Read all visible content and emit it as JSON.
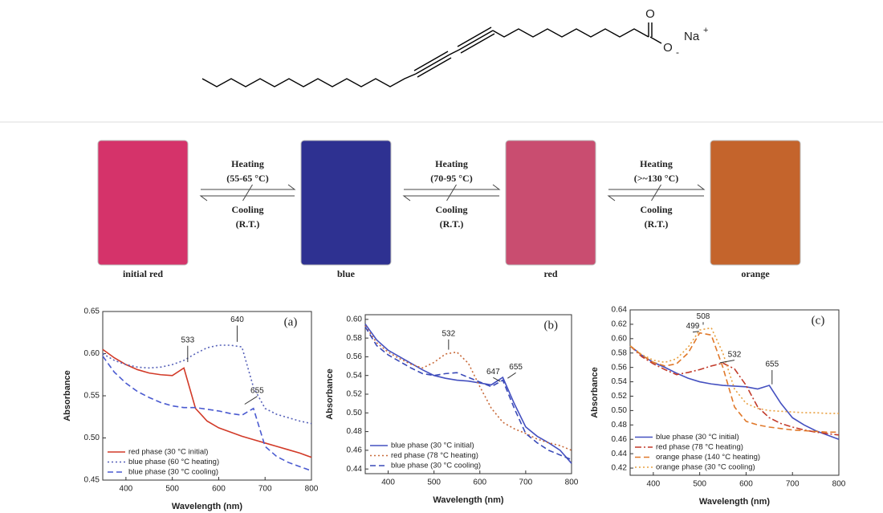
{
  "structure": {
    "carbonyl_o": "O",
    "ester_o": "O",
    "charge": "-",
    "cation": "Na",
    "cation_charge": "+"
  },
  "photos": [
    {
      "label": "initial red",
      "color": "#d5336a"
    },
    {
      "label": "blue",
      "color": "#2e3191"
    },
    {
      "label": "red",
      "color": "#c94d70"
    },
    {
      "label": "orange",
      "color": "#c4642c"
    }
  ],
  "transitions": [
    {
      "heating": "Heating",
      "heat_temp": "(55-65 °C)",
      "cooling": "Cooling",
      "cool_temp": "(R.T.)"
    },
    {
      "heating": "Heating",
      "heat_temp": "(70-95 °C)",
      "cooling": "Cooling",
      "cool_temp": "(R.T.)"
    },
    {
      "heating": "Heating",
      "heat_temp": "(>~130 °C)",
      "cooling": "Cooling",
      "cool_temp": "(R.T.)"
    }
  ],
  "chart_data": [
    {
      "type": "line",
      "panel_label": "(a)",
      "x_label": "Wavelength (nm)",
      "y_label": "Absorbance",
      "legend": "lower left",
      "x": [
        350,
        375,
        400,
        425,
        450,
        475,
        500,
        525,
        550,
        575,
        600,
        625,
        650,
        675,
        700,
        725,
        750,
        775,
        800
      ],
      "xlim": [
        350,
        800
      ],
      "xticks": [
        400,
        500,
        600,
        700,
        800
      ],
      "ylim": [
        0.45,
        0.65
      ],
      "yticks": [
        0.45,
        {
          "value": 0.5,
          "label": "0.50"
        },
        0.55,
        {
          "value": 0.6,
          "label": "0.60"
        },
        0.65
      ],
      "annotations": [
        "533",
        "640",
        "655"
      ],
      "series": [
        {
          "name": "red phase (30 °C initial)",
          "color": "#d23a28",
          "style": "solid",
          "values": [
            0.605,
            0.595,
            0.587,
            0.581,
            0.577,
            0.575,
            0.574,
            0.583,
            0.535,
            0.52,
            0.512,
            0.507,
            0.502,
            0.498,
            0.494,
            0.49,
            0.486,
            0.482,
            0.477
          ]
        },
        {
          "name": "blue phase (60 °C heating)",
          "color": "#5560b8",
          "style": "dotted",
          "values": [
            0.6,
            0.592,
            0.587,
            0.584,
            0.583,
            0.584,
            0.587,
            0.592,
            0.6,
            0.607,
            0.61,
            0.61,
            0.608,
            0.56,
            0.535,
            0.528,
            0.524,
            0.52,
            0.517
          ]
        },
        {
          "name": "blue phase (30 °C cooling)",
          "color": "#4a5ad0",
          "style": "dashed",
          "values": [
            0.597,
            0.578,
            0.565,
            0.555,
            0.548,
            0.542,
            0.538,
            0.536,
            0.536,
            0.534,
            0.532,
            0.529,
            0.527,
            0.535,
            0.49,
            0.478,
            0.471,
            0.466,
            0.461
          ]
        }
      ]
    },
    {
      "type": "line",
      "panel_label": "(b)",
      "x_label": "Wavelength (nm)",
      "y_label": "Absorbance",
      "legend": "lower left",
      "x": [
        350,
        375,
        400,
        425,
        450,
        475,
        500,
        525,
        550,
        575,
        600,
        625,
        650,
        675,
        700,
        725,
        750,
        775,
        800
      ],
      "xlim": [
        350,
        800
      ],
      "xticks": [
        400,
        500,
        600,
        700,
        800
      ],
      "ylim": [
        0.435,
        0.605
      ],
      "yticks": [
        0.44,
        0.46,
        0.48,
        {
          "value": 0.5,
          "label": "0.50"
        },
        0.52,
        0.54,
        0.56,
        0.58,
        {
          "value": 0.6,
          "label": "0.60"
        }
      ],
      "annotations": [
        "532",
        "647",
        "655"
      ],
      "series": [
        {
          "name": "blue phase (30 °C initial)",
          "color": "#4450c0",
          "style": "solid",
          "values": [
            0.595,
            0.578,
            0.567,
            0.56,
            0.553,
            0.546,
            0.54,
            0.537,
            0.535,
            0.534,
            0.532,
            0.53,
            0.538,
            0.51,
            0.485,
            0.475,
            0.468,
            0.46,
            0.446
          ]
        },
        {
          "name": "red phase (78 °C heating)",
          "color": "#c86a3a",
          "style": "dotted",
          "values": [
            0.593,
            0.575,
            0.565,
            0.558,
            0.552,
            0.548,
            0.554,
            0.563,
            0.565,
            0.553,
            0.528,
            0.505,
            0.49,
            0.483,
            0.478,
            0.472,
            0.468,
            0.465,
            0.46
          ]
        },
        {
          "name": "blue phase (30 °C cooling)",
          "color": "#3a4ab8",
          "style": "dashed",
          "values": [
            0.592,
            0.572,
            0.562,
            0.555,
            0.548,
            0.542,
            0.54,
            0.542,
            0.543,
            0.538,
            0.533,
            0.528,
            0.535,
            0.505,
            0.478,
            0.468,
            0.46,
            0.455,
            0.45
          ]
        }
      ]
    },
    {
      "type": "line",
      "panel_label": "(c)",
      "x_label": "Wavelength (nm)",
      "y_label": "Absorbance",
      "legend": "lower left",
      "x": [
        350,
        375,
        400,
        425,
        450,
        475,
        500,
        525,
        550,
        575,
        600,
        625,
        650,
        675,
        700,
        725,
        750,
        775,
        800
      ],
      "xlim": [
        350,
        800
      ],
      "xticks": [
        400,
        500,
        600,
        700,
        800
      ],
      "ylim": [
        0.41,
        0.64
      ],
      "yticks": [
        0.42,
        0.44,
        0.46,
        0.48,
        {
          "value": 0.5,
          "label": "0.50"
        },
        0.52,
        0.54,
        0.56,
        0.58,
        {
          "value": 0.6,
          "label": "0.60"
        },
        0.62,
        0.64
      ],
      "annotations": [
        "499",
        "508",
        "532",
        "655"
      ],
      "series": [
        {
          "name": "blue phase (30 °C initial)",
          "color": "#4450c0",
          "style": "solid",
          "values": [
            0.59,
            0.577,
            0.567,
            0.56,
            0.552,
            0.545,
            0.54,
            0.537,
            0.535,
            0.534,
            0.533,
            0.53,
            0.535,
            0.51,
            0.49,
            0.48,
            0.472,
            0.466,
            0.46
          ]
        },
        {
          "name": "red phase (78 °C heating)",
          "color": "#c23a2a",
          "style": "dashdot",
          "values": [
            0.59,
            0.575,
            0.565,
            0.557,
            0.55,
            0.553,
            0.557,
            0.562,
            0.566,
            0.558,
            0.535,
            0.505,
            0.49,
            0.482,
            0.477,
            0.473,
            0.47,
            0.468,
            0.466
          ]
        },
        {
          "name": "orange phase (140 °C heating)",
          "color": "#e0782a",
          "style": "dashed",
          "values": [
            0.59,
            0.577,
            0.567,
            0.562,
            0.565,
            0.58,
            0.608,
            0.605,
            0.56,
            0.505,
            0.485,
            0.48,
            0.477,
            0.475,
            0.473,
            0.472,
            0.471,
            0.47,
            0.47
          ]
        },
        {
          "name": "orange phase (30 °C cooling)",
          "color": "#e8a040",
          "style": "dotted",
          "values": [
            0.59,
            0.578,
            0.57,
            0.567,
            0.572,
            0.588,
            0.612,
            0.615,
            0.58,
            0.53,
            0.51,
            0.503,
            0.5,
            0.499,
            0.498,
            0.497,
            0.497,
            0.496,
            0.496
          ]
        }
      ]
    }
  ]
}
